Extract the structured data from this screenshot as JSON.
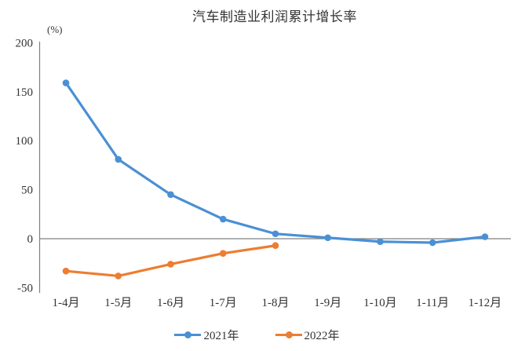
{
  "title": "汽车制造业利润累计增长率",
  "y_axis_unit": "(%)",
  "colors": {
    "series_2021": "#4a90d5",
    "series_2022": "#ed7d31",
    "axis": "#808080",
    "text": "#333333",
    "background": "#ffffff"
  },
  "chart_data": {
    "type": "line",
    "title": "汽车制造业利润累计增长率",
    "xlabel": "",
    "ylabel": "(%)",
    "categories": [
      "1-4月",
      "1-5月",
      "1-6月",
      "1-7月",
      "1-8月",
      "1-9月",
      "1-10月",
      "1-11月",
      "1-12月"
    ],
    "series": [
      {
        "name": "2021年",
        "color": "#4a90d5",
        "values": [
          159,
          81,
          45,
          20,
          5,
          1,
          -3,
          -4,
          2
        ]
      },
      {
        "name": "2022年",
        "color": "#ed7d31",
        "values": [
          -33,
          -38,
          -26,
          -15,
          -7
        ]
      }
    ],
    "ylim": [
      -50,
      200
    ],
    "yticks": [
      200,
      150,
      100,
      50,
      0,
      -50
    ],
    "grid": false,
    "markers": true,
    "legend_position": "bottom-center"
  }
}
